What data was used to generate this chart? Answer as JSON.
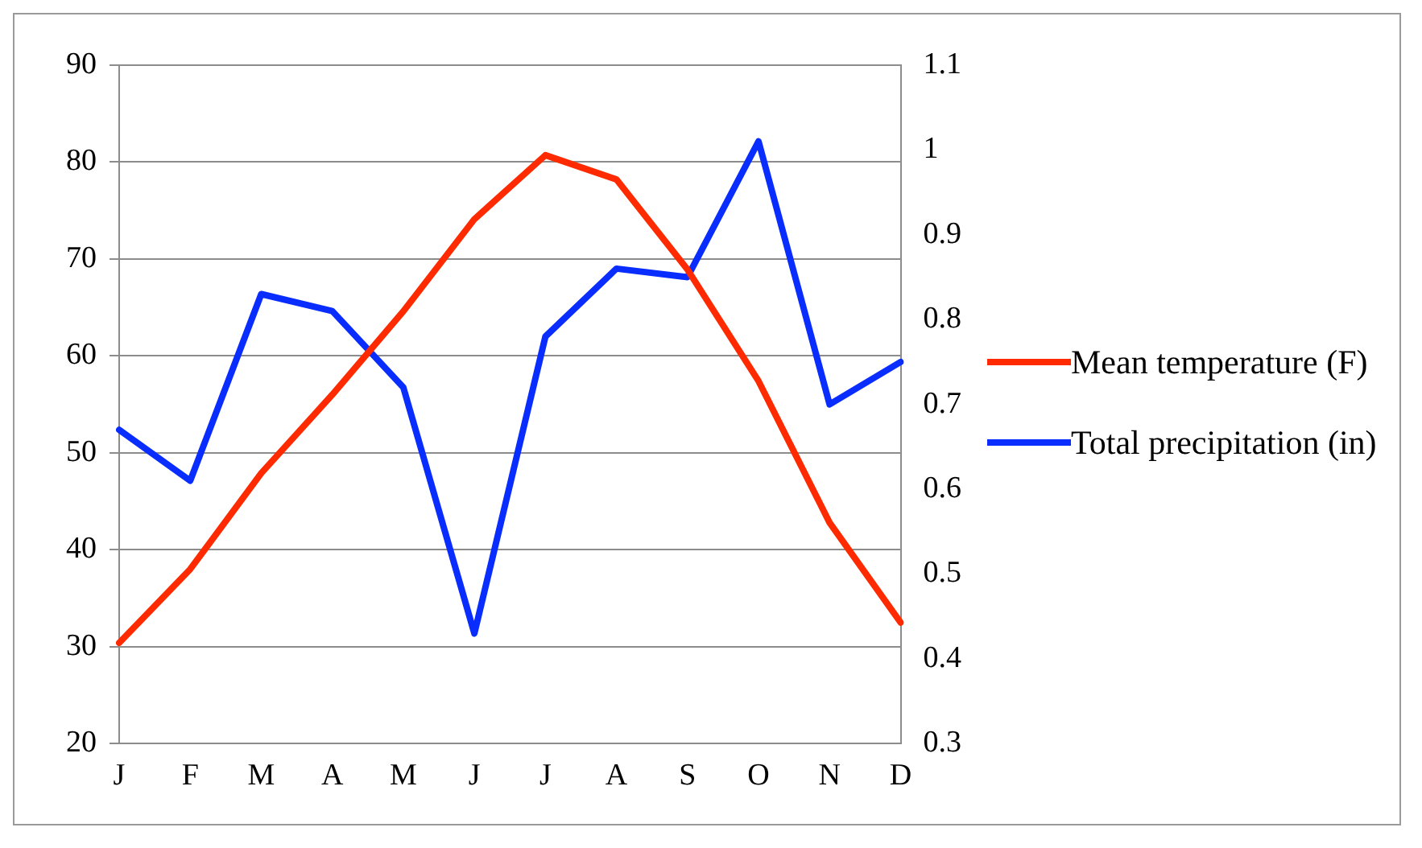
{
  "chart_data": {
    "type": "line",
    "categories": [
      "J",
      "F",
      "M",
      "A",
      "M",
      "J",
      "J",
      "A",
      "S",
      "O",
      "N",
      "D"
    ],
    "series": [
      {
        "name": "Mean temperature (F)",
        "color": "#ff2a00",
        "values": [
          30.4,
          38,
          47.9,
          56,
          64.6,
          74.1,
          80.7,
          78.2,
          68.9,
          57.4,
          42.8,
          32.5
        ]
      },
      {
        "name": "Total precipitation (in)",
        "color": "#0a2dff",
        "axis": "y2",
        "values": [
          0.67,
          0.61,
          0.83,
          0.81,
          0.72,
          0.43,
          0.78,
          0.86,
          0.85,
          1.01,
          0.7,
          0.75
        ]
      }
    ],
    "ylim": [
      20,
      90
    ],
    "yticks": [
      20,
      30,
      40,
      50,
      60,
      70,
      80,
      90
    ],
    "y2lim": [
      0.3,
      1.1
    ],
    "y2ticks": [
      0.3,
      0.4,
      0.5,
      0.6,
      0.7,
      0.8,
      0.9,
      1,
      1.1
    ],
    "grid": "y",
    "legend": "right",
    "marker": "none",
    "line_style": "solid"
  }
}
